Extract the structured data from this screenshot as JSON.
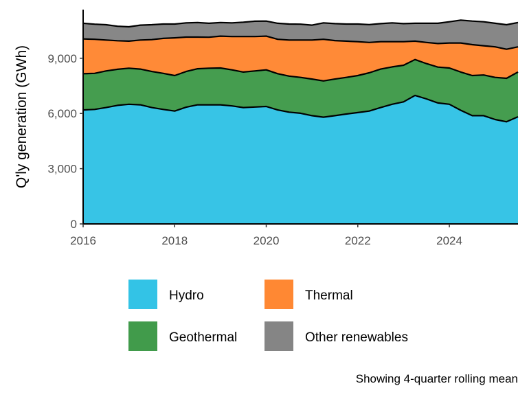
{
  "chart_data": {
    "type": "area",
    "stacked": true,
    "title": "",
    "xlabel": "",
    "ylabel": "Q'ly generation (GWh)",
    "caption": "Showing 4-quarter rolling mean",
    "xlim": [
      2016,
      2025.5
    ],
    "ylim": [
      0,
      11000
    ],
    "x_ticks": [
      2016,
      2018,
      2020,
      2022,
      2024
    ],
    "x_tick_labels": [
      "2016",
      "2018",
      "2020",
      "2022",
      "2024"
    ],
    "y_ticks": [
      0,
      3000,
      6000,
      9000
    ],
    "y_tick_labels": [
      "0",
      "3,000",
      "6,000",
      "9,000"
    ],
    "grid": false,
    "legend_position": "bottom",
    "x": [
      2016.0,
      2016.25,
      2016.5,
      2016.75,
      2017.0,
      2017.25,
      2017.5,
      2017.75,
      2018.0,
      2018.25,
      2018.5,
      2018.75,
      2019.0,
      2019.25,
      2019.5,
      2019.75,
      2020.0,
      2020.25,
      2020.5,
      2020.75,
      2021.0,
      2021.25,
      2021.5,
      2021.75,
      2022.0,
      2022.25,
      2022.5,
      2022.75,
      2023.0,
      2023.25,
      2023.5,
      2023.75,
      2024.0,
      2024.25,
      2024.5,
      2024.75,
      2025.0,
      2025.25,
      2025.5
    ],
    "series": [
      {
        "name": "Hydro",
        "color": "#33C3E6",
        "values": [
          6190,
          6220,
          6320,
          6440,
          6500,
          6470,
          6320,
          6220,
          6130,
          6340,
          6470,
          6470,
          6470,
          6410,
          6320,
          6350,
          6380,
          6190,
          6070,
          6010,
          5880,
          5800,
          5880,
          5970,
          6050,
          6130,
          6320,
          6500,
          6630,
          6980,
          6790,
          6570,
          6500,
          6170,
          5880,
          5880,
          5670,
          5550,
          5820
        ]
      },
      {
        "name": "Geothermal",
        "color": "#419B4B",
        "values": [
          1970,
          1960,
          1990,
          1960,
          1960,
          1940,
          1960,
          1960,
          1930,
          1940,
          1960,
          1990,
          2000,
          1960,
          1930,
          1960,
          1990,
          1970,
          1960,
          1950,
          1990,
          1970,
          1990,
          1990,
          2010,
          2080,
          2090,
          2030,
          1990,
          1950,
          1920,
          1950,
          1970,
          2080,
          2180,
          2210,
          2290,
          2360,
          2430
        ]
      },
      {
        "name": "Thermal",
        "color": "#FF8833",
        "values": [
          1890,
          1850,
          1680,
          1550,
          1470,
          1580,
          1730,
          1900,
          2050,
          1870,
          1720,
          1680,
          1730,
          1810,
          1930,
          1870,
          1830,
          1870,
          1960,
          2030,
          2120,
          2260,
          2090,
          1970,
          1840,
          1650,
          1490,
          1370,
          1280,
          1000,
          1150,
          1280,
          1360,
          1580,
          1680,
          1590,
          1660,
          1580,
          1370
        ]
      },
      {
        "name": "Other renewables",
        "color": "#858585",
        "values": [
          850,
          820,
          830,
          790,
          780,
          810,
          810,
          780,
          750,
          770,
          790,
          760,
          740,
          740,
          780,
          830,
          820,
          870,
          870,
          860,
          810,
          890,
          920,
          930,
          960,
          970,
          980,
          1020,
          980,
          970,
          1040,
          1100,
          1150,
          1240,
          1280,
          1300,
          1280,
          1330,
          1320
        ]
      }
    ]
  }
}
